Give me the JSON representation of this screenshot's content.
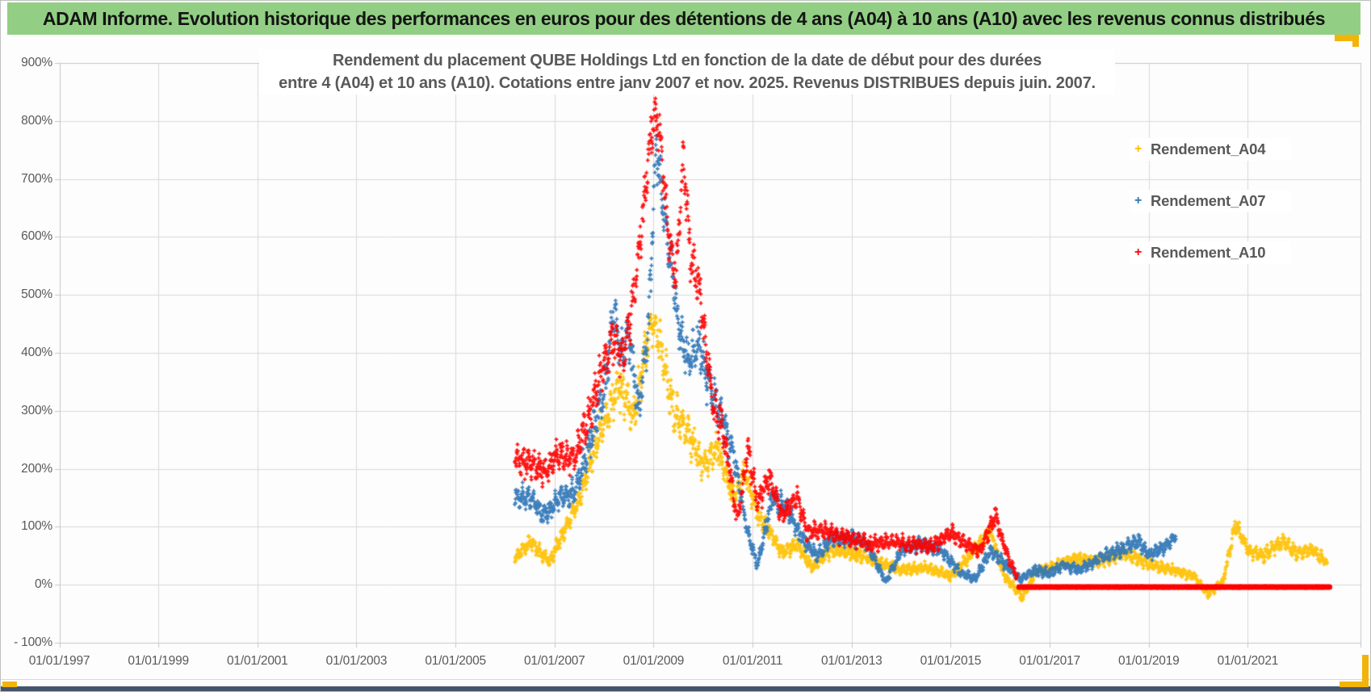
{
  "window": {
    "header_title": "ADAM Informe. Evolution historique des performances en euros pour des détentions de 4 ans (A04) à 10 ans (A10) avec les revenus connus distribués"
  },
  "chart_data": {
    "type": "scatter",
    "marker": "plus",
    "title_line1": "Rendement du placement QUBE Holdings Ltd en fonction de la date de début pour des durées",
    "title_line2": "entre 4 (A04) et 10 ans (A10). Cotations entre janv 2007 et nov. 2025. Revenus DISTRIBUES depuis juin. 2007.",
    "grid": true,
    "legend_position": "right",
    "x_axis": {
      "tick_labels": [
        "01/01/1997",
        "01/01/1999",
        "01/01/2001",
        "01/01/2003",
        "01/01/2005",
        "01/01/2007",
        "01/01/2009",
        "01/01/2011",
        "01/01/2013",
        "01/01/2015",
        "01/01/2017",
        "01/01/2019",
        "01/01/2021"
      ],
      "range_years": [
        1997,
        2023.3
      ]
    },
    "y_axis": {
      "tick_labels": [
        "900%",
        "800%",
        "700%",
        "600%",
        "500%",
        "400%",
        "300%",
        "200%",
        "100%",
        "0%",
        "- 100%"
      ],
      "min": -100,
      "max": 900,
      "step": 100,
      "unit": "%"
    },
    "series": [
      {
        "name": "Rendement_A04",
        "color": "#FFC000",
        "keypoints_year_pct": [
          [
            2006.2,
            45
          ],
          [
            2006.5,
            75
          ],
          [
            2006.9,
            40
          ],
          [
            2007.2,
            95
          ],
          [
            2007.5,
            150
          ],
          [
            2007.9,
            260
          ],
          [
            2008.3,
            345
          ],
          [
            2008.6,
            290
          ],
          [
            2008.95,
            450
          ],
          [
            2009.1,
            430
          ],
          [
            2009.4,
            300
          ],
          [
            2009.7,
            260
          ],
          [
            2010.0,
            205
          ],
          [
            2010.3,
            235
          ],
          [
            2010.6,
            150
          ],
          [
            2010.85,
            195
          ],
          [
            2011.1,
            120
          ],
          [
            2011.35,
            90
          ],
          [
            2011.6,
            55
          ],
          [
            2011.9,
            70
          ],
          [
            2012.2,
            30
          ],
          [
            2012.6,
            60
          ],
          [
            2013.0,
            55
          ],
          [
            2013.5,
            40
          ],
          [
            2014.0,
            25
          ],
          [
            2014.5,
            30
          ],
          [
            2015.0,
            15
          ],
          [
            2015.4,
            50
          ],
          [
            2015.8,
            95
          ],
          [
            2016.05,
            20
          ],
          [
            2016.45,
            -22
          ],
          [
            2016.7,
            20
          ],
          [
            2017.0,
            30
          ],
          [
            2017.5,
            45
          ],
          [
            2018.0,
            40
          ],
          [
            2018.5,
            55
          ],
          [
            2019.0,
            35
          ],
          [
            2019.5,
            25
          ],
          [
            2019.9,
            15
          ],
          [
            2020.2,
            -15
          ],
          [
            2020.5,
            5
          ],
          [
            2020.75,
            105
          ],
          [
            2021.0,
            60
          ],
          [
            2021.3,
            50
          ],
          [
            2021.7,
            75
          ],
          [
            2022.0,
            55
          ],
          [
            2022.3,
            60
          ],
          [
            2022.6,
            38
          ]
        ]
      },
      {
        "name": "Rendement_A07",
        "color": "#2E75B6",
        "keypoints_year_pct": [
          [
            2006.2,
            155
          ],
          [
            2006.5,
            150
          ],
          [
            2006.8,
            120
          ],
          [
            2007.1,
            150
          ],
          [
            2007.4,
            160
          ],
          [
            2007.7,
            240
          ],
          [
            2008.0,
            330
          ],
          [
            2008.2,
            475
          ],
          [
            2008.35,
            400
          ],
          [
            2008.5,
            430
          ],
          [
            2008.7,
            300
          ],
          [
            2008.9,
            450
          ],
          [
            2009.05,
            755
          ],
          [
            2009.2,
            650
          ],
          [
            2009.35,
            560
          ],
          [
            2009.5,
            450
          ],
          [
            2009.7,
            380
          ],
          [
            2009.9,
            420
          ],
          [
            2010.1,
            350
          ],
          [
            2010.4,
            280
          ],
          [
            2010.6,
            230
          ],
          [
            2010.9,
            90
          ],
          [
            2011.1,
            35
          ],
          [
            2011.4,
            150
          ],
          [
            2011.7,
            130
          ],
          [
            2012.0,
            80
          ],
          [
            2012.3,
            50
          ],
          [
            2012.6,
            80
          ],
          [
            2013.0,
            80
          ],
          [
            2013.3,
            70
          ],
          [
            2013.7,
            5
          ],
          [
            2014.0,
            60
          ],
          [
            2014.4,
            70
          ],
          [
            2014.8,
            60
          ],
          [
            2015.2,
            20
          ],
          [
            2015.5,
            10
          ],
          [
            2015.8,
            60
          ],
          [
            2016.1,
            35
          ],
          [
            2016.4,
            10
          ],
          [
            2016.7,
            25
          ],
          [
            2017.0,
            20
          ],
          [
            2017.3,
            35
          ],
          [
            2017.6,
            25
          ],
          [
            2018.0,
            45
          ],
          [
            2018.4,
            60
          ],
          [
            2018.8,
            75
          ],
          [
            2019.0,
            50
          ],
          [
            2019.3,
            65
          ],
          [
            2019.55,
            85
          ]
        ]
      },
      {
        "name": "Rendement_A10",
        "color": "#FF0000",
        "keypoints_year_pct": [
          [
            2006.2,
            215
          ],
          [
            2006.5,
            210
          ],
          [
            2006.8,
            195
          ],
          [
            2007.1,
            225
          ],
          [
            2007.4,
            215
          ],
          [
            2007.7,
            290
          ],
          [
            2008.0,
            385
          ],
          [
            2008.2,
            420
          ],
          [
            2008.4,
            390
          ],
          [
            2008.6,
            500
          ],
          [
            2008.8,
            650
          ],
          [
            2008.95,
            780
          ],
          [
            2009.05,
            815
          ],
          [
            2009.15,
            755
          ],
          [
            2009.3,
            600
          ],
          [
            2009.45,
            530
          ],
          [
            2009.6,
            740
          ],
          [
            2009.75,
            560
          ],
          [
            2009.9,
            525
          ],
          [
            2010.05,
            420
          ],
          [
            2010.2,
            310
          ],
          [
            2010.4,
            270
          ],
          [
            2010.6,
            160
          ],
          [
            2010.7,
            110
          ],
          [
            2010.9,
            235
          ],
          [
            2011.1,
            140
          ],
          [
            2011.35,
            185
          ],
          [
            2011.6,
            120
          ],
          [
            2011.9,
            150
          ],
          [
            2012.1,
            90
          ],
          [
            2012.4,
            95
          ],
          [
            2012.7,
            85
          ],
          [
            2013.0,
            80
          ],
          [
            2013.4,
            70
          ],
          [
            2013.8,
            75
          ],
          [
            2014.2,
            70
          ],
          [
            2014.6,
            65
          ],
          [
            2015.0,
            90
          ],
          [
            2015.3,
            70
          ],
          [
            2015.6,
            60
          ],
          [
            2015.9,
            120
          ],
          [
            2016.05,
            75
          ],
          [
            2016.2,
            40
          ],
          [
            2016.35,
            12
          ]
        ],
        "flat_segment": {
          "start_year": 2016.38,
          "end_year": 2022.65,
          "value_pct": -4
        }
      }
    ]
  },
  "colors": {
    "header_bg": "#92CF84",
    "accent_gold": "#F2B40A",
    "grid": "#D9D9D9",
    "axis_text": "#595959",
    "title_text": "#595959",
    "footer_bar": "#44546A",
    "series_a04": "#FFC000",
    "series_a07": "#2E75B6",
    "series_a10": "#FF0000"
  }
}
